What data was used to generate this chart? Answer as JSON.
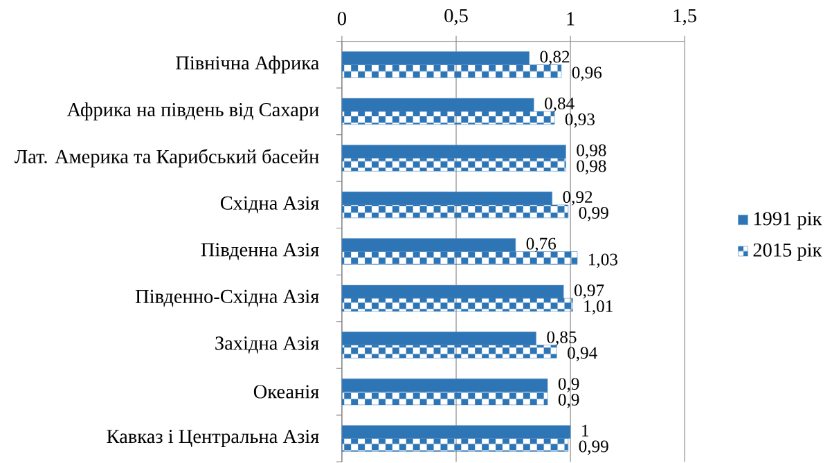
{
  "chart_data": {
    "type": "bar",
    "orientation": "horizontal",
    "categories": [
      "Північна Африка",
      "Африка на південь від Сахари",
      "Лат. Америка та Карибський басейн",
      "Східна Азія",
      "Південна Азія",
      "Південно-Східна Азія",
      "Західна Азія",
      "Океанія",
      "Кавказ і Центральна Азія"
    ],
    "series": [
      {
        "name": "1991 рік",
        "color": "#2e75b6",
        "values": [
          0.82,
          0.84,
          0.98,
          0.92,
          0.76,
          0.97,
          0.85,
          0.9,
          1
        ],
        "value_labels": [
          "0,82",
          "0,84",
          "0,98",
          "0,92",
          "0,76",
          "0,97",
          "0,85",
          "0,9",
          "1"
        ]
      },
      {
        "name": "2015 рік",
        "color": "#2e75b6",
        "values": [
          0.96,
          0.93,
          0.98,
          0.99,
          1.03,
          1.01,
          0.94,
          0.9,
          0.99
        ],
        "value_labels": [
          "0,96",
          "0,93",
          "0,98",
          "0,99",
          "1,03",
          "1,01",
          "0,94",
          "0,9",
          "0,99"
        ]
      }
    ],
    "xlim": [
      0,
      1.5
    ],
    "xticks": [
      0,
      {
        "value": 0.5,
        "label": "0,5"
      },
      1,
      {
        "value": 1.5,
        "label": "1,5"
      }
    ],
    "grid": "x",
    "legend": "right"
  }
}
